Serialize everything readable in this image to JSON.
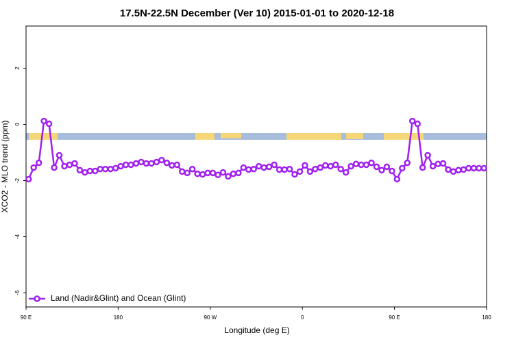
{
  "chart_data": {
    "type": "line",
    "title": "17.5N-22.5N December (Ver 10)   2015-01-01 to 2020-12-18",
    "x_label": "Longitude (deg E)",
    "y_label": "XCO2 - MLO trend (ppm)",
    "xlim": [
      90,
      540
    ],
    "xticks": [
      {
        "value": 90,
        "label": "90 E"
      },
      {
        "value": 180,
        "label": "180"
      },
      {
        "value": 270,
        "label": "90 W"
      },
      {
        "value": 360,
        "label": "0"
      },
      {
        "value": 450,
        "label": "90 E"
      },
      {
        "value": 540,
        "label": "180"
      }
    ],
    "ylim": [
      -6.5,
      3.5
    ],
    "yticks": [
      -6,
      -4,
      -2,
      0,
      2
    ],
    "legend": "bottom-left",
    "x": [
      92.5,
      97.5,
      102.5,
      107.5,
      112.5,
      117.5,
      122.5,
      127.5,
      132.5,
      137.5,
      142.5,
      147.5,
      152.5,
      157.5,
      162.5,
      167.5,
      172.5,
      177.5,
      182.5,
      187.5,
      192.5,
      197.5,
      202.5,
      207.5,
      212.5,
      217.5,
      222.5,
      227.5,
      232.5,
      237.5,
      242.5,
      247.5,
      252.5,
      257.5,
      262.5,
      267.5,
      272.5,
      277.5,
      282.5,
      287.5,
      292.5,
      297.5,
      302.5,
      307.5,
      312.5,
      317.5,
      322.5,
      327.5,
      332.5,
      337.5,
      342.5,
      347.5,
      352.5,
      357.5,
      362.5,
      367.5,
      372.5,
      377.5,
      382.5,
      387.5,
      392.5,
      397.5,
      402.5,
      407.5,
      412.5,
      417.5,
      422.5,
      427.5,
      432.5,
      437.5,
      442.5,
      447.5,
      452.5,
      457.5,
      462.5,
      467.5,
      472.5,
      477.5,
      482.5,
      487.5,
      492.5,
      497.5,
      502.5,
      507.5,
      512.5,
      517.5,
      522.5,
      527.5,
      532.5,
      537.5
    ],
    "series": [
      {
        "name": "Land (Nadir&Glint) and Ocean (Glint)",
        "color": "#a020f0",
        "values": [
          -1.95,
          -1.54,
          -1.37,
          0.12,
          0.02,
          -1.54,
          -1.1,
          -1.49,
          -1.44,
          -1.39,
          -1.63,
          -1.71,
          -1.66,
          -1.66,
          -1.59,
          -1.59,
          -1.59,
          -1.56,
          -1.49,
          -1.44,
          -1.44,
          -1.39,
          -1.34,
          -1.39,
          -1.39,
          -1.34,
          -1.27,
          -1.37,
          -1.46,
          -1.44,
          -1.68,
          -1.73,
          -1.59,
          -1.76,
          -1.78,
          -1.73,
          -1.73,
          -1.8,
          -1.71,
          -1.85,
          -1.76,
          -1.73,
          -1.54,
          -1.61,
          -1.59,
          -1.49,
          -1.54,
          -1.51,
          -1.44,
          -1.61,
          -1.61,
          -1.59,
          -1.78,
          -1.68,
          -1.46,
          -1.68,
          -1.59,
          -1.54,
          -1.46,
          -1.49,
          -1.44,
          -1.59,
          -1.71,
          -1.49,
          -1.41,
          -1.44,
          -1.44,
          -1.37,
          -1.51,
          -1.63,
          -1.51,
          -1.66,
          -1.95,
          -1.56,
          -1.37,
          0.12,
          0.02,
          -1.54,
          -1.1,
          -1.49,
          -1.41,
          -1.39,
          -1.61,
          -1.68,
          -1.63,
          -1.61,
          -1.56,
          -1.56,
          -1.56,
          -1.56
        ]
      }
    ]
  }
}
